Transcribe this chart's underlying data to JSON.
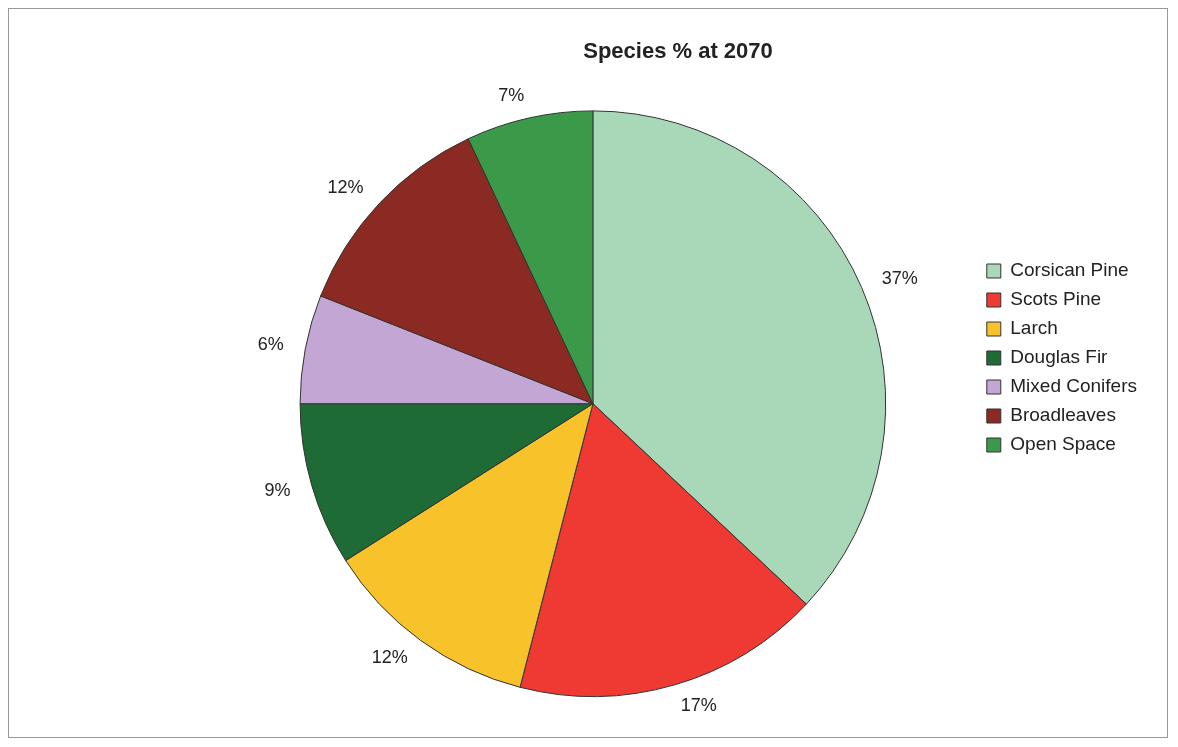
{
  "chart_data": {
    "type": "pie",
    "title": "Species % at 2070",
    "categories": [
      "Corsican Pine",
      "Scots Pine",
      "Larch",
      "Douglas Fir",
      "Mixed Conifers",
      "Broadleaves",
      "Open Space"
    ],
    "values": [
      37,
      17,
      12,
      9,
      6,
      12,
      7
    ],
    "value_labels": [
      "37%",
      "17%",
      "12%",
      "9%",
      "6%",
      "12%",
      "7%"
    ],
    "colors": [
      "#a8d8b8",
      "#ee3a32",
      "#f7c22a",
      "#1f6b35",
      "#c3a6d4",
      "#8b2a22",
      "#3a9a4a"
    ],
    "legend": "right"
  }
}
